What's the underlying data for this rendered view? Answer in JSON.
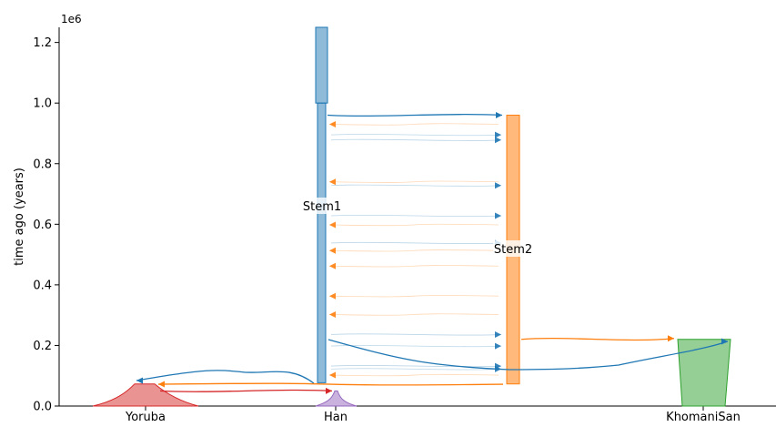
{
  "chart_data": {
    "type": "demographic-model",
    "ylabel": "time ago (years)",
    "offset_label": "1e6",
    "ylim": [
      0,
      1250000
    ],
    "yticks": [
      0,
      200000,
      400000,
      600000,
      800000,
      1000000,
      1200000
    ],
    "ytick_labels": [
      "0.0",
      "0.2",
      "0.4",
      "0.6",
      "0.8",
      "1.0",
      "1.2"
    ],
    "xtick_labels": [
      "Yoruba",
      "Han",
      "KhomaniSan"
    ],
    "colors": {
      "Stem1": "#1f77b4",
      "Stem2": "#ff7f0e",
      "KhomaniSan": "#2ca02c",
      "Yoruba": "#d62728",
      "Han": "#9467bd"
    },
    "demes": [
      {
        "name": "Stem1",
        "label": "Stem1",
        "start": 1250000,
        "end": 77000,
        "epochs": [
          {
            "start": 1250000,
            "end": 1000000,
            "width": "wide"
          },
          {
            "start": 1000000,
            "end": 77000,
            "width": "narrow"
          }
        ]
      },
      {
        "name": "Stem2",
        "label": "Stem2",
        "start": 960000,
        "end": 73000
      },
      {
        "name": "KhomaniSan",
        "start": 220000,
        "end": 0
      },
      {
        "name": "Yoruba",
        "start": 73000,
        "end": 0
      },
      {
        "name": "Han",
        "start": 50000,
        "end": 0
      }
    ],
    "pulses": [
      {
        "source": "Stem1",
        "dest": "Stem2",
        "time": 960000
      },
      {
        "source": "Stem2",
        "dest": "KhomaniSan",
        "time": 220000
      },
      {
        "source": "Stem1",
        "dest": "KhomaniSan",
        "time": 218000
      },
      {
        "source": "Stem1",
        "dest": "Yoruba",
        "time": 78000
      },
      {
        "source": "Stem2",
        "dest": "Yoruba",
        "time": 72000
      },
      {
        "source": "Yoruba",
        "dest": "Han",
        "time": 50000
      }
    ],
    "migrations": [
      {
        "source": "Stem2",
        "dest": "Stem1",
        "time": 930000
      },
      {
        "source": "Stem1",
        "dest": "Stem2",
        "time": 895000
      },
      {
        "source": "Stem1",
        "dest": "Stem2",
        "time": 878000
      },
      {
        "source": "Stem2",
        "dest": "Stem1",
        "time": 740000
      },
      {
        "source": "Stem1",
        "dest": "Stem2",
        "time": 728000
      },
      {
        "source": "Stem1",
        "dest": "Stem2",
        "time": 628000
      },
      {
        "source": "Stem2",
        "dest": "Stem1",
        "time": 598000
      },
      {
        "source": "Stem1",
        "dest": "Stem2",
        "time": 538000
      },
      {
        "source": "Stem2",
        "dest": "Stem1",
        "time": 513000
      },
      {
        "source": "Stem2",
        "dest": "Stem1",
        "time": 462000
      },
      {
        "source": "Stem2",
        "dest": "Stem1",
        "time": 363000
      },
      {
        "source": "Stem2",
        "dest": "Stem1",
        "time": 302000
      },
      {
        "source": "Stem1",
        "dest": "Stem2",
        "time": 236000
      },
      {
        "source": "Stem1",
        "dest": "Stem2",
        "time": 198000
      },
      {
        "source": "Stem1",
        "dest": "Stem2",
        "time": 132000
      },
      {
        "source": "Stem1",
        "dest": "Stem2",
        "time": 122000
      },
      {
        "source": "Stem2",
        "dest": "Stem1",
        "time": 102000
      }
    ]
  }
}
